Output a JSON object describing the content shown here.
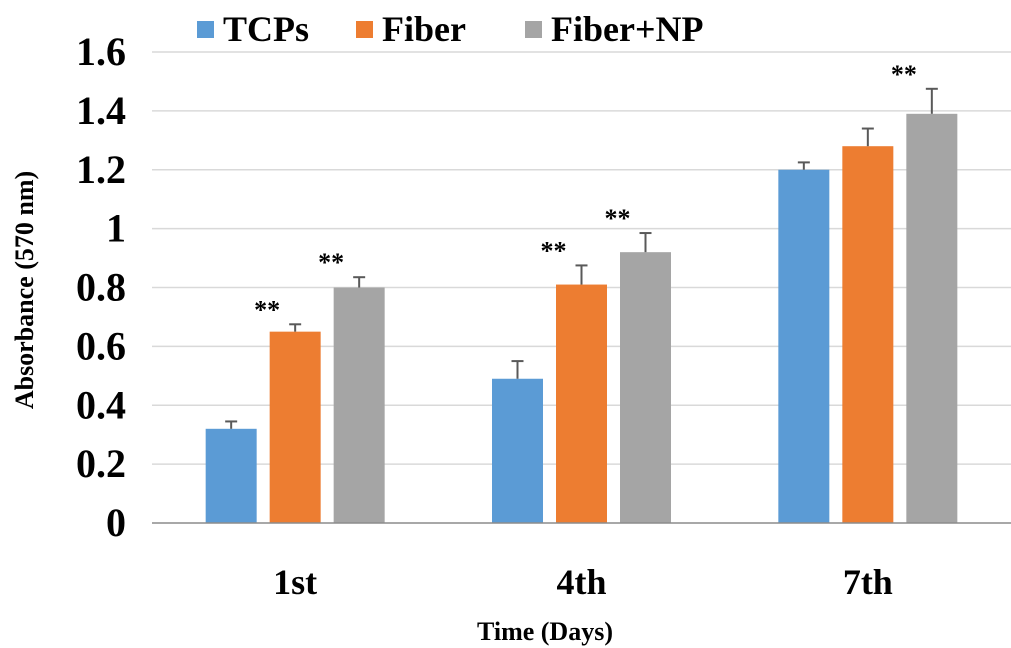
{
  "chart_data": {
    "type": "bar",
    "categories": [
      "1st",
      "4th",
      "7th"
    ],
    "series": [
      {
        "name": "TCPs",
        "color": "#5b9bd5",
        "values": [
          0.32,
          0.49,
          1.2
        ],
        "errors": [
          0.025,
          0.06,
          0.025
        ],
        "significance": [
          "",
          "",
          ""
        ]
      },
      {
        "name": "Fiber",
        "color": "#ed7d31",
        "values": [
          0.65,
          0.81,
          1.28
        ],
        "errors": [
          0.025,
          0.065,
          0.06
        ],
        "significance": [
          "**",
          "**",
          ""
        ]
      },
      {
        "name": "Fiber+NP",
        "color": "#a5a5a5",
        "values": [
          0.8,
          0.92,
          1.39
        ],
        "errors": [
          0.035,
          0.065,
          0.085
        ],
        "significance": [
          "**",
          "**",
          "**"
        ]
      }
    ],
    "xlabel": "Time (Days)",
    "ylabel": "Absorbance (570 nm)",
    "ylim": [
      0,
      1.6
    ],
    "yticks": [
      "0",
      "0.2",
      "0.4",
      "0.6",
      "0.8",
      "1",
      "1.2",
      "1.4",
      "1.6"
    ],
    "grid": true,
    "legend_position": "top"
  }
}
